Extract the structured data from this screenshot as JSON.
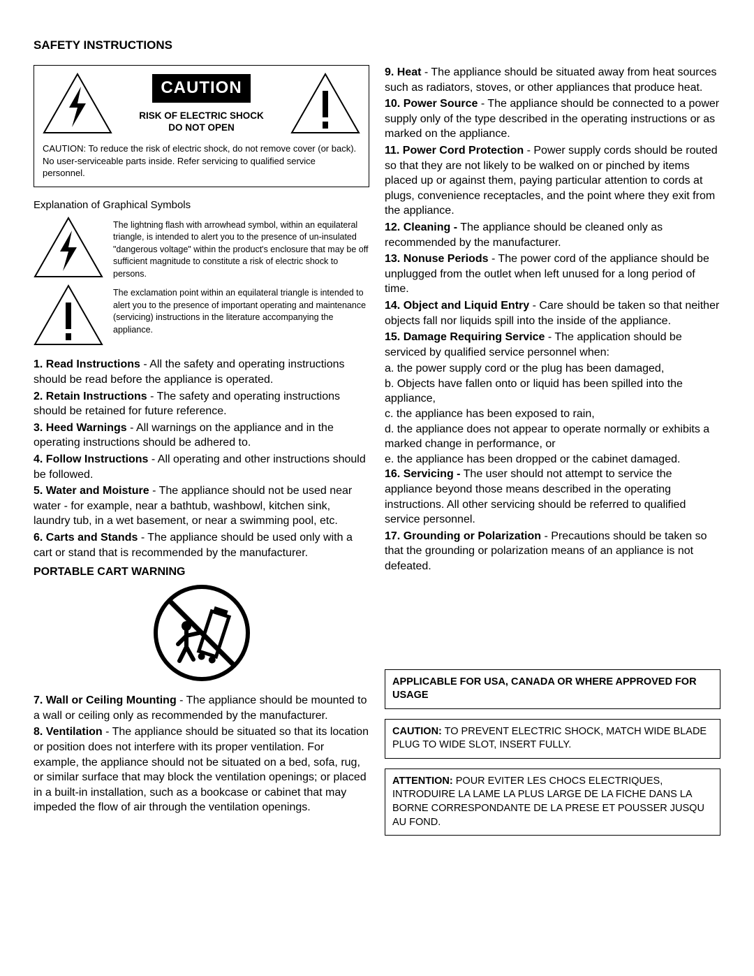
{
  "title": "SAFETY INSTRUCTIONS",
  "caution": {
    "band": "CAUTION",
    "risk1": "RISK OF ELECTRIC SHOCK",
    "risk2": "DO NOT OPEN",
    "note": "CAUTION: To reduce the risk of electric shock, do not remove cover (or back). No user-serviceable parts inside. Refer servicing to qualified service personnel."
  },
  "explain": {
    "heading": "Explanation of Graphical Symbols",
    "lightning": "The lightning flash with arrowhead symbol, within an equilateral triangle, is intended to alert you to the presence of un-insulated \"dangerous voltage\" within the product's enclosure that may be off sufficient magnitude to constitute a risk of electric shock to persons.",
    "exclaim": "The exclamation point within an equilateral triangle is intended to alert you to the presence of important operating and maintenance (servicing) instructions in the literature accompanying the appliance."
  },
  "left_items": [
    {
      "b": "1. Read Instructions",
      "t": " - All the safety and operating instructions should be read before the appliance is operated."
    },
    {
      "b": "2. Retain Instructions",
      "t": " - The safety and operating instructions should be retained for future reference."
    },
    {
      "b": "3. Heed Warnings",
      "t": " - All warnings on the appliance and in the operating instructions should be adhered to."
    },
    {
      "b": "4. Follow Instructions",
      "t": " - All operating and other instructions should be followed."
    },
    {
      "b": "5. Water and Moisture",
      "t": " - The appliance should not be used near water - for example, near a bathtub, washbowl, kitchen sink, laundry tub, in a wet basement, or near a swimming pool, etc."
    },
    {
      "b": "6. Carts and Stands",
      "t": " - The appliance should be used only with a cart or stand that is recommended by the manufacturer."
    }
  ],
  "cart_heading": "PORTABLE CART WARNING",
  "left_items2": [
    {
      "b": "7. Wall or Ceiling Mounting",
      "t": " - The appliance should be mounted to a wall or ceiling only as recommended by the manufacturer."
    },
    {
      "b": "8. Ventilation",
      "t": " - The appliance should be situated so that its location or position does not interfere with its proper ventilation. For example, the appliance should not be situated on a bed, sofa, rug, or similar surface that may block the ventilation openings; or placed in a built-in installation, such as a bookcase or cabinet that may impeded the flow of air through the ventilation openings."
    }
  ],
  "right_items": [
    {
      "b": "9. Heat",
      "t": " - The appliance should be situated away from heat sources such as radiators, stoves, or other appliances that produce heat."
    },
    {
      "b": "10. Power Source",
      "t": " - The appliance should be connected to a power supply only of the type described in the operating instructions or as marked on the appliance."
    },
    {
      "b": "11. Power Cord Protection",
      "t": " - Power supply cords should be routed so that they are not likely to be walked on or pinched by items placed up or against them, paying particular attention to cords at plugs, convenience receptacles, and the point where they exit from the appliance."
    },
    {
      "b": "12. Cleaning -",
      "t": " The appliance should be cleaned only as recommended by the manufacturer."
    },
    {
      "b": "13. Nonuse Periods",
      "t": " - The power cord of the appliance should be unplugged from the outlet when left unused for a long period of time."
    },
    {
      "b": "14. Object and Liquid Entry",
      "t": " - Care should be taken so that neither objects fall nor liquids spill into the inside of the appliance."
    },
    {
      "b": "15. Damage Requiring Service",
      "t": " - The application should be serviced by qualified service personnel when:"
    }
  ],
  "damage_sub": [
    "a. the power supply cord or the plug has been damaged,",
    "b. Objects have fallen onto or liquid has been spilled into the appliance,",
    "c. the appliance has been exposed to rain,",
    "d. the appliance does not appear to operate normally or exhibits a marked change in performance, or",
    "e. the appliance has been dropped or the cabinet damaged."
  ],
  "right_items2": [
    {
      "b": "16. Servicing -",
      "t": " The user should not attempt to service the appliance beyond those means described in the operating instructions. All other servicing should be referred to qualified service personnel."
    },
    {
      "b": "17. Grounding or Polarization",
      "t": " - Precautions should be taken so that the grounding or polarization means of an appliance is not defeated."
    }
  ],
  "boxes": {
    "applicable": "APPLICABLE FOR USA, CANADA OR WHERE APPROVED FOR USAGE",
    "caution_b": "CAUTION:",
    "caution_t": " TO PREVENT ELECTRIC SHOCK, MATCH WIDE BLADE PLUG TO WIDE SLOT, INSERT FULLY.",
    "attention_b": "ATTENTION:",
    "attention_t": " POUR EVITER LES CHOCS ELECTRIQUES, INTRODUIRE LA LAME LA PLUS LARGE DE LA FICHE DANS LA BORNE CORRESPONDANTE DE LA PRESE ET POUSSER JUSQU AU FOND."
  }
}
